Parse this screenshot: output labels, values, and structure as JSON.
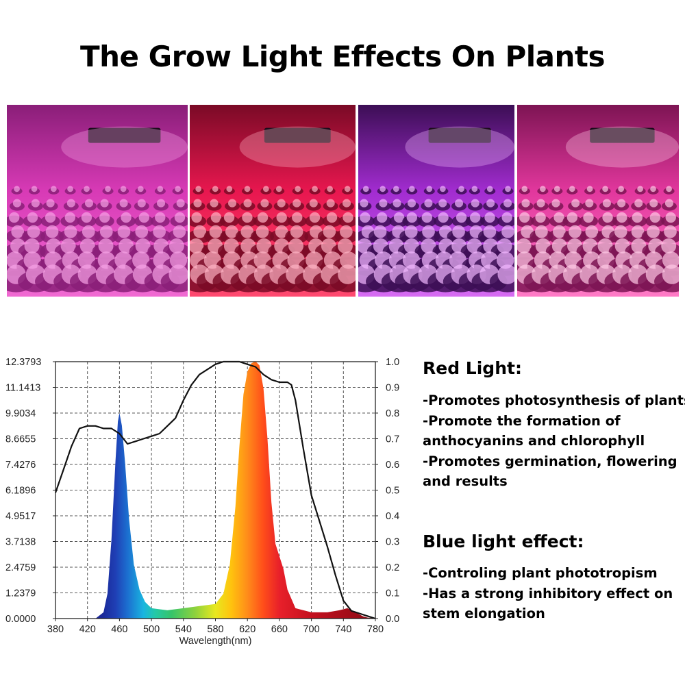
{
  "title": "The Grow Light Effects On Plants",
  "photos": [
    {
      "name": "grow-room-photo-1",
      "palette": [
        "#d83ab6",
        "#f06ad2",
        "#8a1e78",
        "#f7a3e6"
      ]
    },
    {
      "name": "grow-shelf-photo-2",
      "palette": [
        "#e8174f",
        "#ff4a70",
        "#7a0a26",
        "#ffb3c4"
      ]
    },
    {
      "name": "grow-tent-photo-3",
      "palette": [
        "#a22cd0",
        "#d66cf2",
        "#3c0e55",
        "#f2b8ff"
      ]
    },
    {
      "name": "grow-pots-photo-4",
      "palette": [
        "#e2379d",
        "#ff7bc6",
        "#7d1453",
        "#ffc9e6"
      ]
    }
  ],
  "chart_data": {
    "type": "area",
    "xlabel": "Wavelength(nm)",
    "xlim": [
      380,
      780
    ],
    "x_ticks": [
      "380",
      "420",
      "460",
      "500",
      "540",
      "580",
      "620",
      "660",
      "700",
      "740",
      "780"
    ],
    "left_ticks": [
      "0.0000",
      "1.2379",
      "2.4759",
      "3.7138",
      "4.9517",
      "6.1896",
      "7.4276",
      "8.6655",
      "9.9034",
      "11.1413",
      "12.3793"
    ],
    "right_ticks": [
      "0.0",
      "0.1",
      "0.2",
      "0.3",
      "0.4",
      "0.5",
      "0.6",
      "0.7",
      "0.8",
      "0.9",
      "1.0"
    ],
    "ylim_left": [
      0,
      12.3793
    ],
    "ylim_right": [
      0,
      1.0
    ],
    "grid": true,
    "series": [
      {
        "axis": "left",
        "style": "spectrum-filled",
        "x": [
          380,
          430,
          440,
          445,
          450,
          455,
          458,
          460,
          463,
          467,
          472,
          478,
          485,
          492,
          500,
          520,
          540,
          560,
          580,
          590,
          598,
          605,
          610,
          615,
          620,
          625,
          630,
          635,
          640,
          645,
          650,
          655,
          660,
          665,
          670,
          680,
          700,
          720,
          735,
          745,
          755,
          765,
          770,
          780
        ],
        "y": [
          0,
          0,
          0.3,
          1.2,
          3.8,
          7.6,
          9.5,
          9.9,
          9.3,
          7.5,
          4.8,
          2.6,
          1.4,
          0.8,
          0.5,
          0.4,
          0.5,
          0.6,
          0.7,
          1.2,
          2.6,
          5.4,
          8.3,
          10.8,
          11.9,
          12.3,
          12.4,
          12.2,
          11.1,
          8.7,
          5.6,
          3.6,
          3.0,
          2.4,
          1.4,
          0.5,
          0.3,
          0.3,
          0.4,
          0.5,
          0.3,
          0.1,
          0.05,
          0
        ]
      },
      {
        "axis": "right",
        "style": "line",
        "x": [
          380,
          390,
          400,
          410,
          420,
          430,
          440,
          450,
          460,
          465,
          470,
          480,
          490,
          500,
          510,
          520,
          530,
          540,
          550,
          560,
          570,
          580,
          590,
          600,
          610,
          620,
          630,
          640,
          650,
          660,
          670,
          675,
          680,
          690,
          700,
          710,
          720,
          730,
          740,
          750,
          760,
          770,
          780
        ],
        "y": [
          0.49,
          0.58,
          0.67,
          0.74,
          0.75,
          0.75,
          0.74,
          0.74,
          0.72,
          0.7,
          0.68,
          0.69,
          0.7,
          0.71,
          0.72,
          0.75,
          0.78,
          0.85,
          0.91,
          0.95,
          0.97,
          0.99,
          1.0,
          1.0,
          1.0,
          0.99,
          0.98,
          0.95,
          0.93,
          0.92,
          0.92,
          0.91,
          0.85,
          0.66,
          0.48,
          0.38,
          0.28,
          0.17,
          0.07,
          0.03,
          0.02,
          0.01,
          0.0
        ]
      }
    ]
  },
  "red": {
    "heading": "Red Light:",
    "lines": [
      "-Promotes photosynthesis of plants",
      "-Promote the formation of",
      "anthocyanins and chlorophyll",
      "-Promotes germination, flowering",
      "and results"
    ]
  },
  "blue": {
    "heading": "Blue light effect:",
    "lines": [
      "-Controling plant phototropism",
      "-Has a strong inhibitory effect on",
      "stem elongation"
    ]
  }
}
